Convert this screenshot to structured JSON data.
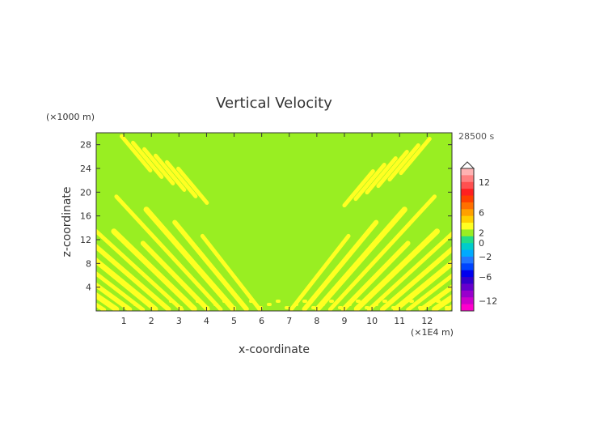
{
  "chart_data": {
    "type": "heatmap",
    "title": "Vertical Velocity",
    "xlabel": "x-coordinate",
    "ylabel": "z-coordinate",
    "x_unit": "(×1E4 m)",
    "y_unit": "(×1000 m)",
    "time_label": "28500 s",
    "xlim": [
      0,
      12.9
    ],
    "ylim": [
      0,
      30
    ],
    "x_ticks": [
      "1",
      "2",
      "3",
      "4",
      "5",
      "6",
      "7",
      "8",
      "9",
      "10",
      "11",
      "12"
    ],
    "y_ticks": [
      "4",
      "8",
      "12",
      "16",
      "20",
      "24",
      "28"
    ],
    "field_colors": {
      "background_band": "#99ee22",
      "positive_band": "#ffff22"
    },
    "colorbar": {
      "labels": [
        "12",
        "6",
        "2",
        "0",
        "−2",
        "−6",
        "−12"
      ],
      "colors": [
        "#ffb2b2",
        "#ff8080",
        "#ff5050",
        "#ff2020",
        "#ff4000",
        "#ff7000",
        "#ffa000",
        "#ffd000",
        "#ffff22",
        "#99ee22",
        "#22dd88",
        "#00cccc",
        "#00aaff",
        "#2277ff",
        "#0044ff",
        "#0000ee",
        "#3300cc",
        "#6600cc",
        "#9900cc",
        "#cc00cc",
        "#ff00cc"
      ]
    }
  }
}
